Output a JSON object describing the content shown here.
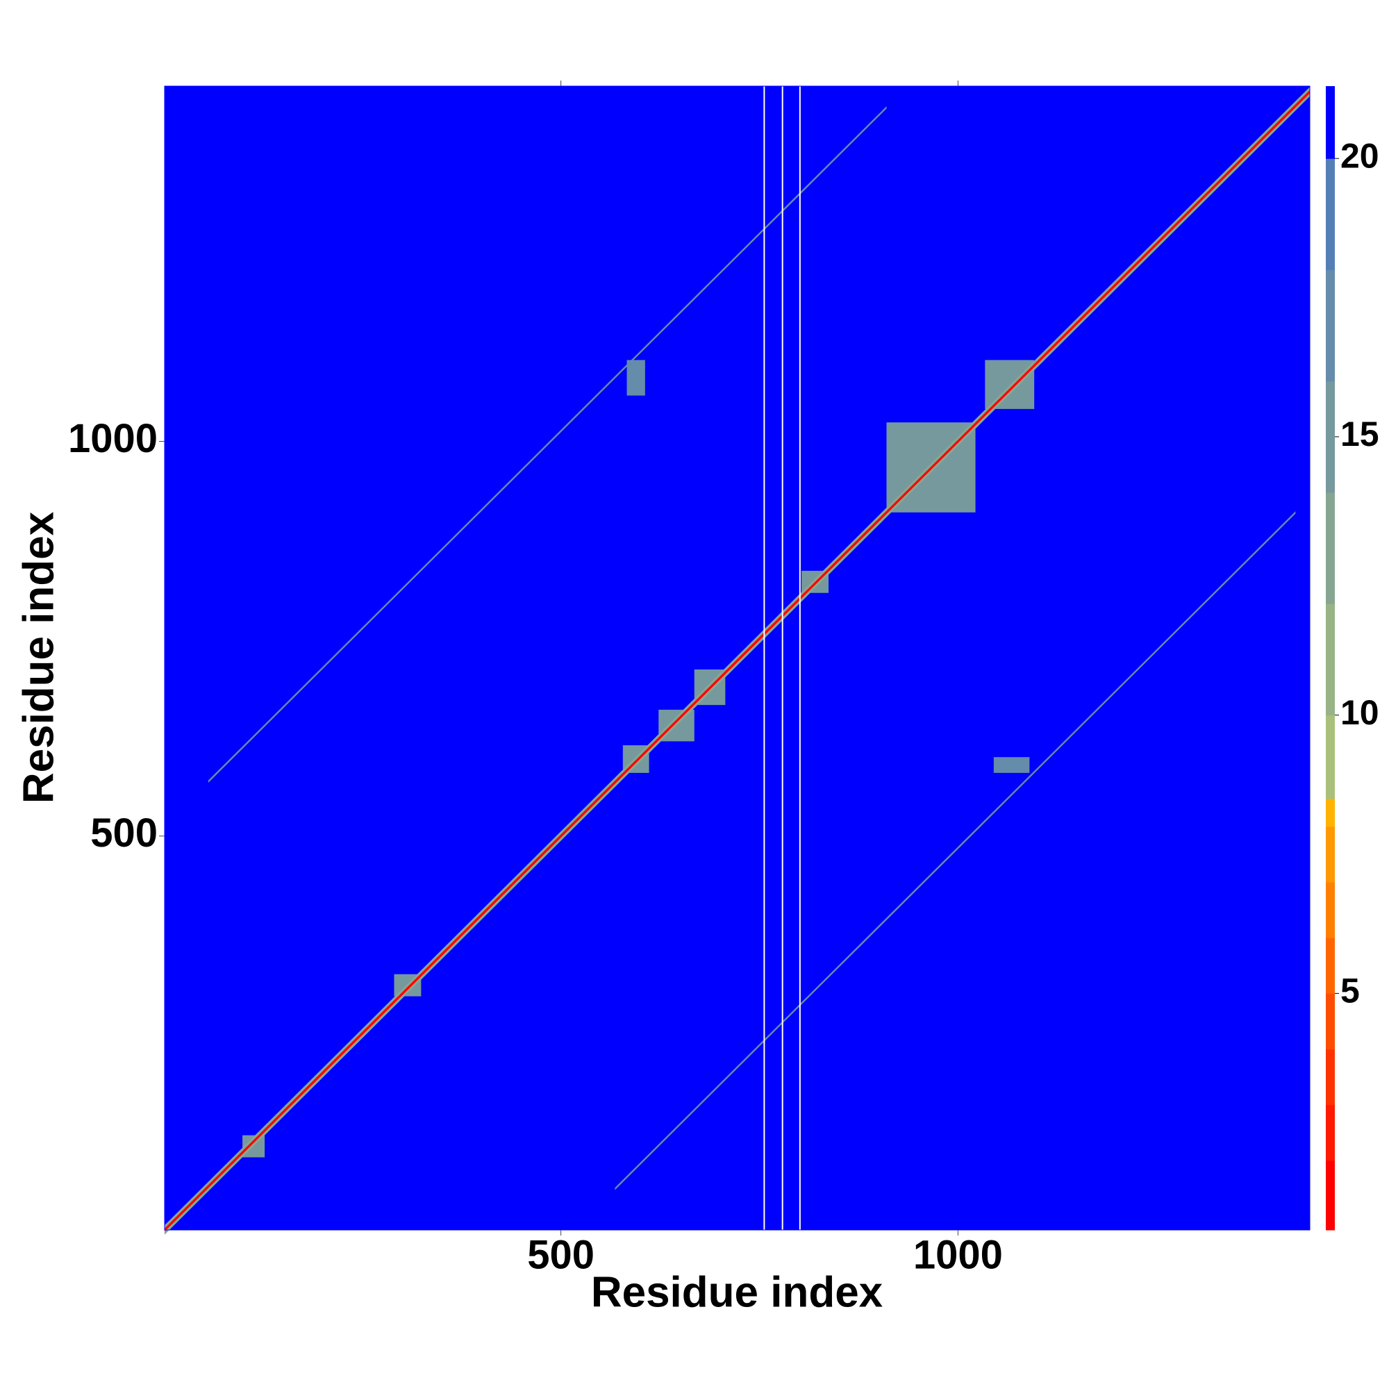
{
  "chart_data": {
    "type": "heatmap",
    "x_label": "Residue index",
    "y_label": "Residue index",
    "xlim": [
      1,
      1443
    ],
    "ylim": [
      1,
      1450
    ],
    "xticks": [
      500,
      1000
    ],
    "yticks": [
      500,
      1000
    ],
    "background_value": 21,
    "null_columns": [
      756,
      779,
      801
    ],
    "blocks": [
      {
        "x": [
          1034,
          1096
        ],
        "y": [
          1041,
          1103
        ],
        "value": 15
      },
      {
        "x": [
          910,
          1022
        ],
        "y": [
          910,
          1024
        ],
        "value": 15
      },
      {
        "x": [
          803,
          837
        ],
        "y": [
          808,
          836
        ],
        "value": 15
      },
      {
        "x": [
          668,
          707
        ],
        "y": [
          666,
          711
        ],
        "value": 15
      },
      {
        "x": [
          623,
          668
        ],
        "y": [
          620,
          660
        ],
        "value": 15
      },
      {
        "x": [
          578,
          611
        ],
        "y": [
          580,
          615
        ],
        "value": 15
      },
      {
        "x": [
          290,
          324
        ],
        "y": [
          297,
          325
        ],
        "value": 15
      },
      {
        "x": [
          99,
          127
        ],
        "y": [
          93,
          121
        ],
        "value": 15
      },
      {
        "x": [
          1045,
          1090
        ],
        "y": [
          580,
          600
        ],
        "value": 17
      },
      {
        "x": [
          583,
          606
        ],
        "y": [
          1058,
          1103
        ],
        "value": 17
      }
    ],
    "diagonals": [
      {
        "offset": 0,
        "from": 1,
        "to": 1443,
        "value": 14,
        "width": 12
      },
      {
        "offset": 0,
        "from": 1,
        "to": 1443,
        "value": 1,
        "width": 4
      },
      {
        "offset": 513,
        "from": 56,
        "to": 910,
        "value": 17,
        "width": 3
      },
      {
        "offset": -515,
        "from": 568,
        "to": 1425,
        "value": 17,
        "width": 3
      }
    ],
    "colorbar": {
      "lim": [
        0.75,
        21.3
      ],
      "ticks": [
        5,
        10,
        15,
        20
      ],
      "bounds": [
        0.75,
        2,
        3,
        4,
        5,
        6,
        7,
        8,
        8.5,
        10,
        12,
        14,
        16,
        18,
        20,
        21.3
      ],
      "colors": [
        "#ff0000",
        "#ff1a00",
        "#ff3300",
        "#ff4d00",
        "#ff6600",
        "#ff8000",
        "#ff9900",
        "#ffb300",
        "#a9c07a",
        "#98b386",
        "#87a692",
        "#76999e",
        "#658caa",
        "#547fb6",
        "#0000ff"
      ]
    }
  }
}
